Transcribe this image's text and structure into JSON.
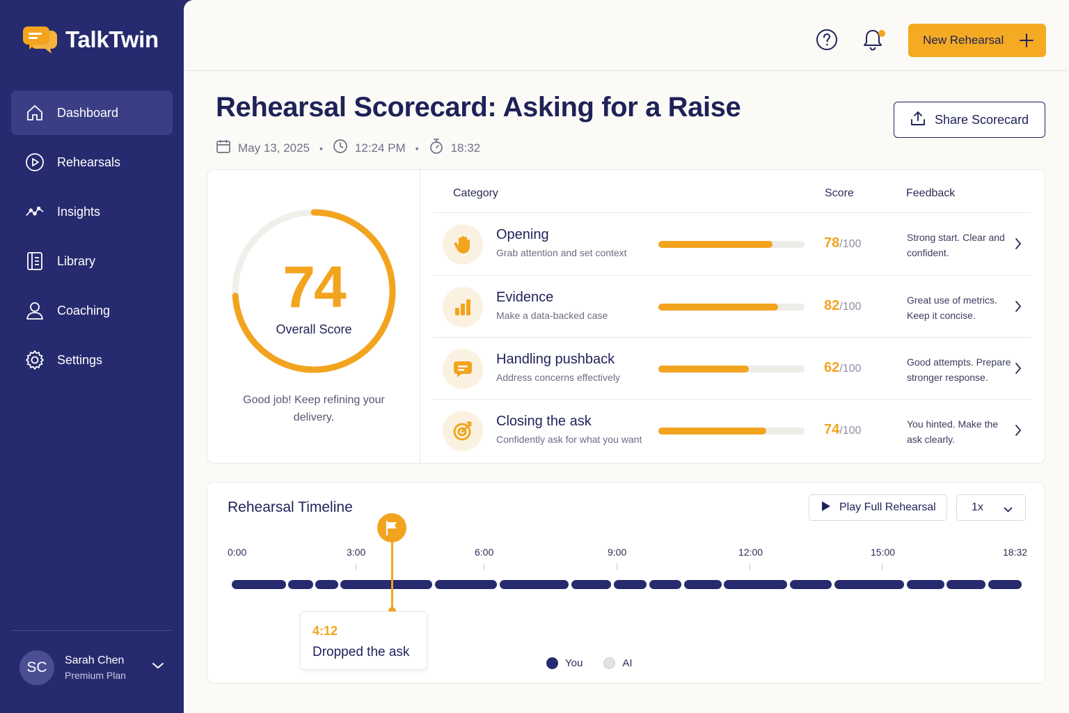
{
  "app": {
    "name": "TalkTwin"
  },
  "sidebar": {
    "items": [
      {
        "label": "Dashboard",
        "icon": "home-icon",
        "active": true
      },
      {
        "label": "Rehearsals",
        "icon": "play-circle-icon",
        "active": false
      },
      {
        "label": "Insights",
        "icon": "trend-line-icon",
        "active": false
      },
      {
        "label": "Library",
        "icon": "book-icon",
        "active": false
      },
      {
        "label": "Coaching",
        "icon": "person-icon",
        "active": false
      },
      {
        "label": "Settings",
        "icon": "gear-icon",
        "active": false
      }
    ],
    "user": {
      "initials": "SC",
      "name": "Sarah Chen",
      "plan": "Premium Plan"
    }
  },
  "topbar": {
    "new_button": "New Rehearsal"
  },
  "page": {
    "title": "Rehearsal Scorecard: Asking for a Raise",
    "date": "May 13, 2025",
    "time": "12:24 PM",
    "duration": "18:32",
    "share_button": "Share Scorecard"
  },
  "overall": {
    "score": "74",
    "score_value": 74,
    "label": "Overall Score",
    "message": "Good job! Keep refining your delivery."
  },
  "table": {
    "headers": {
      "category": "Category",
      "score": "Score",
      "feedback": "Feedback"
    },
    "rows": [
      {
        "name": "Opening",
        "desc": "Grab attention and set context",
        "score": "78",
        "denom": "/100",
        "value": 78,
        "feedback": "Strong start. Clear and confident.",
        "icon": "waving-hand-icon"
      },
      {
        "name": "Evidence",
        "desc": "Make a data-backed case",
        "score": "82",
        "denom": "/100",
        "value": 82,
        "feedback": "Great use of metrics. Keep it concise.",
        "icon": "bar-chart-icon"
      },
      {
        "name": "Handling pushback",
        "desc": "Address concerns effectively",
        "score": "62",
        "denom": "/100",
        "value": 62,
        "feedback": "Good attempts. Prepare stronger response.",
        "icon": "speech-bubble-icon"
      },
      {
        "name": "Closing the ask",
        "desc": "Confidently ask for what you want",
        "score": "74",
        "denom": "/100",
        "value": 74,
        "feedback": "You hinted. Make the ask clearly.",
        "icon": "target-icon"
      }
    ]
  },
  "timeline": {
    "title": "Rehearsal Timeline",
    "play_button": "Play Full Rehearsal",
    "speed": "1x",
    "ticks": [
      "0:00",
      "3:00",
      "6:00",
      "9:00",
      "12:00",
      "15:00",
      "18:32"
    ],
    "marker": {
      "time": "4:12",
      "label": "Dropped the ask"
    },
    "legend": [
      {
        "label": "You",
        "color": "#262a6e"
      },
      {
        "label": "AI",
        "color": "#dcdcdc"
      }
    ]
  },
  "colors": {
    "accent": "#f2a41f",
    "navy": "#262a6e"
  }
}
